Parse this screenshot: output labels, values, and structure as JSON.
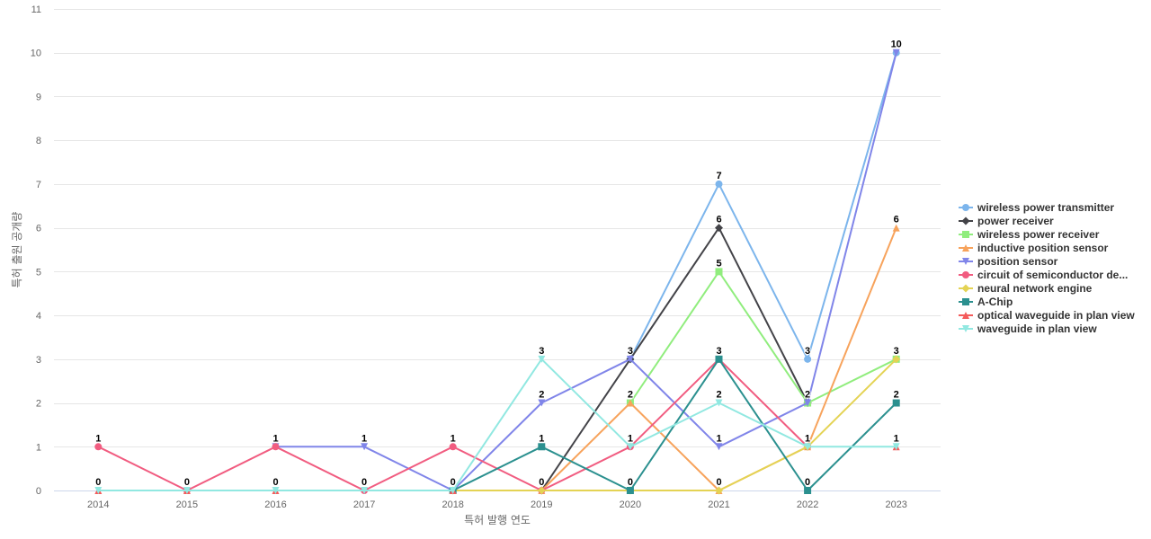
{
  "chart_data": {
    "type": "line",
    "title": "",
    "xlabel": "특허 발행 연도",
    "ylabel": "특허 출원 공개량",
    "ylim": [
      0,
      11
    ],
    "yticks": [
      "0",
      "1",
      "2",
      "3",
      "4",
      "5",
      "6",
      "7",
      "8",
      "9",
      "10",
      "11"
    ],
    "x": [
      "2014",
      "2015",
      "2016",
      "2017",
      "2018",
      "2019",
      "2020",
      "2021",
      "2022",
      "2023"
    ],
    "grid": true,
    "legend_position": "right",
    "series": [
      {
        "name": "wireless power transmitter",
        "color": "#7cb5ec",
        "marker": "circle",
        "values": [
          null,
          null,
          null,
          null,
          null,
          null,
          3,
          7,
          3,
          10
        ]
      },
      {
        "name": "power receiver",
        "color": "#434348",
        "marker": "diamond",
        "values": [
          null,
          null,
          null,
          null,
          null,
          0,
          3,
          6,
          2,
          null
        ]
      },
      {
        "name": "wireless power receiver",
        "color": "#90ed7d",
        "marker": "square",
        "values": [
          null,
          null,
          null,
          null,
          null,
          null,
          2,
          5,
          2,
          3
        ]
      },
      {
        "name": "inductive position sensor",
        "color": "#f7a35c",
        "marker": "triangle",
        "values": [
          null,
          null,
          null,
          null,
          null,
          0,
          2,
          0,
          1,
          6
        ]
      },
      {
        "name": "position sensor",
        "color": "#8085e9",
        "marker": "triangle-down",
        "values": [
          null,
          null,
          1,
          1,
          0,
          2,
          3,
          1,
          2,
          10
        ]
      },
      {
        "name": "circuit of semiconductor de...",
        "color": "#f15c80",
        "marker": "circle",
        "values": [
          1,
          0,
          1,
          0,
          1,
          0,
          1,
          3,
          1,
          null
        ]
      },
      {
        "name": "neural network engine",
        "color": "#e4d354",
        "marker": "diamond",
        "values": [
          null,
          null,
          null,
          null,
          0,
          0,
          0,
          0,
          1,
          3
        ]
      },
      {
        "name": "A-Chip",
        "color": "#2b908f",
        "marker": "square",
        "values": [
          null,
          null,
          null,
          null,
          0,
          1,
          0,
          3,
          0,
          2
        ]
      },
      {
        "name": "optical waveguide in plan view",
        "color": "#f45b5b",
        "marker": "triangle",
        "values": [
          0,
          0,
          0,
          null,
          0,
          null,
          null,
          null,
          null,
          1
        ]
      },
      {
        "name": "waveguide in plan view",
        "color": "#91e8e1",
        "marker": "triangle-down",
        "values": [
          0,
          0,
          0,
          0,
          0,
          3,
          1,
          2,
          1,
          1
        ]
      }
    ],
    "data_labels": [
      {
        "x": "2014",
        "text": "1",
        "value": 1
      },
      {
        "x": "2014",
        "text": "0",
        "value": 0
      },
      {
        "x": "2015",
        "text": "0",
        "value": 0
      },
      {
        "x": "2016",
        "text": "1",
        "value": 1
      },
      {
        "x": "2016",
        "text": "0",
        "value": 0
      },
      {
        "x": "2017",
        "text": "1",
        "value": 1
      },
      {
        "x": "2017",
        "text": "0",
        "value": 0
      },
      {
        "x": "2018",
        "text": "1",
        "value": 1
      },
      {
        "x": "2018",
        "text": "0",
        "value": 0
      },
      {
        "x": "2019",
        "text": "3",
        "value": 3
      },
      {
        "x": "2019",
        "text": "2",
        "value": 2
      },
      {
        "x": "2019",
        "text": "1",
        "value": 1
      },
      {
        "x": "2019",
        "text": "0",
        "value": 0
      },
      {
        "x": "2020",
        "text": "3",
        "value": 3
      },
      {
        "x": "2020",
        "text": "2",
        "value": 2
      },
      {
        "x": "2020",
        "text": "1",
        "value": 1
      },
      {
        "x": "2020",
        "text": "0",
        "value": 0
      },
      {
        "x": "2021",
        "text": "7",
        "value": 7
      },
      {
        "x": "2021",
        "text": "6",
        "value": 6
      },
      {
        "x": "2021",
        "text": "5",
        "value": 5
      },
      {
        "x": "2021",
        "text": "3",
        "value": 3
      },
      {
        "x": "2021",
        "text": "2",
        "value": 2
      },
      {
        "x": "2021",
        "text": "1",
        "value": 1
      },
      {
        "x": "2021",
        "text": "0",
        "value": 0
      },
      {
        "x": "2022",
        "text": "3",
        "value": 3
      },
      {
        "x": "2022",
        "text": "2",
        "value": 2
      },
      {
        "x": "2022",
        "text": "1",
        "value": 1
      },
      {
        "x": "2022",
        "text": "0",
        "value": 0
      },
      {
        "x": "2023",
        "text": "10",
        "value": 10
      },
      {
        "x": "2023",
        "text": "6",
        "value": 6
      },
      {
        "x": "2023",
        "text": "3",
        "value": 3
      },
      {
        "x": "2023",
        "text": "2",
        "value": 2
      },
      {
        "x": "2023",
        "text": "1",
        "value": 1
      }
    ]
  }
}
